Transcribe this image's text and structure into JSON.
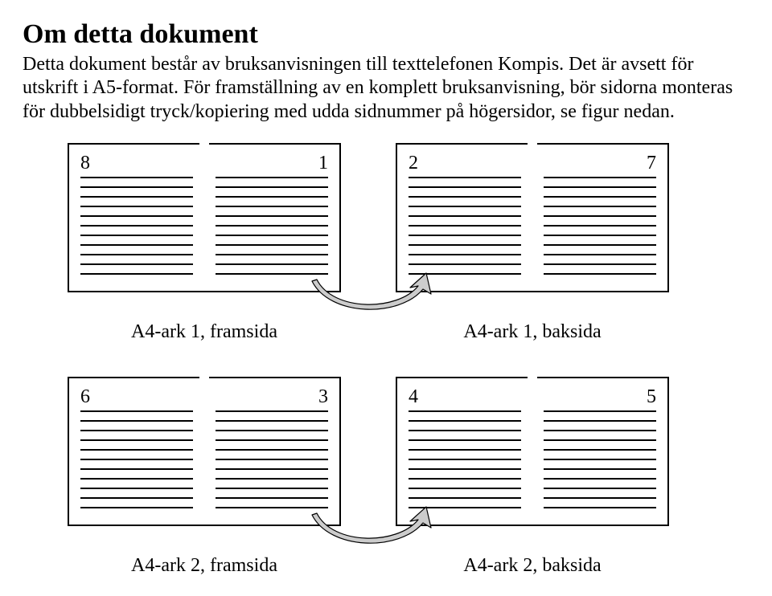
{
  "title": "Om detta dokument",
  "paragraph": "Detta dokument består av bruksanvisningen till texttelefonen Kompis. Det är avsett för utskrift i A5-format. För framställning av en komplett bruksanvisning, bör sidorna monteras för dubbelsidigt tryck/kopiering med udda sidnummer på högersidor, se figur nedan.",
  "figure": {
    "line_count_per_page": 11,
    "line_color": "#000000",
    "sheet_border_color": "#000000",
    "arrow_fill": "#cccccc",
    "arrow_stroke": "#000000",
    "sheets": [
      {
        "caption": "A4-ark 1, framsida",
        "left_num": "8",
        "right_num": "1"
      },
      {
        "caption": "A4-ark 1, baksida",
        "left_num": "2",
        "right_num": "7"
      },
      {
        "caption": "A4-ark 2, framsida",
        "left_num": "6",
        "right_num": "3"
      },
      {
        "caption": "A4-ark 2, baksida",
        "left_num": "4",
        "right_num": "5"
      }
    ]
  }
}
